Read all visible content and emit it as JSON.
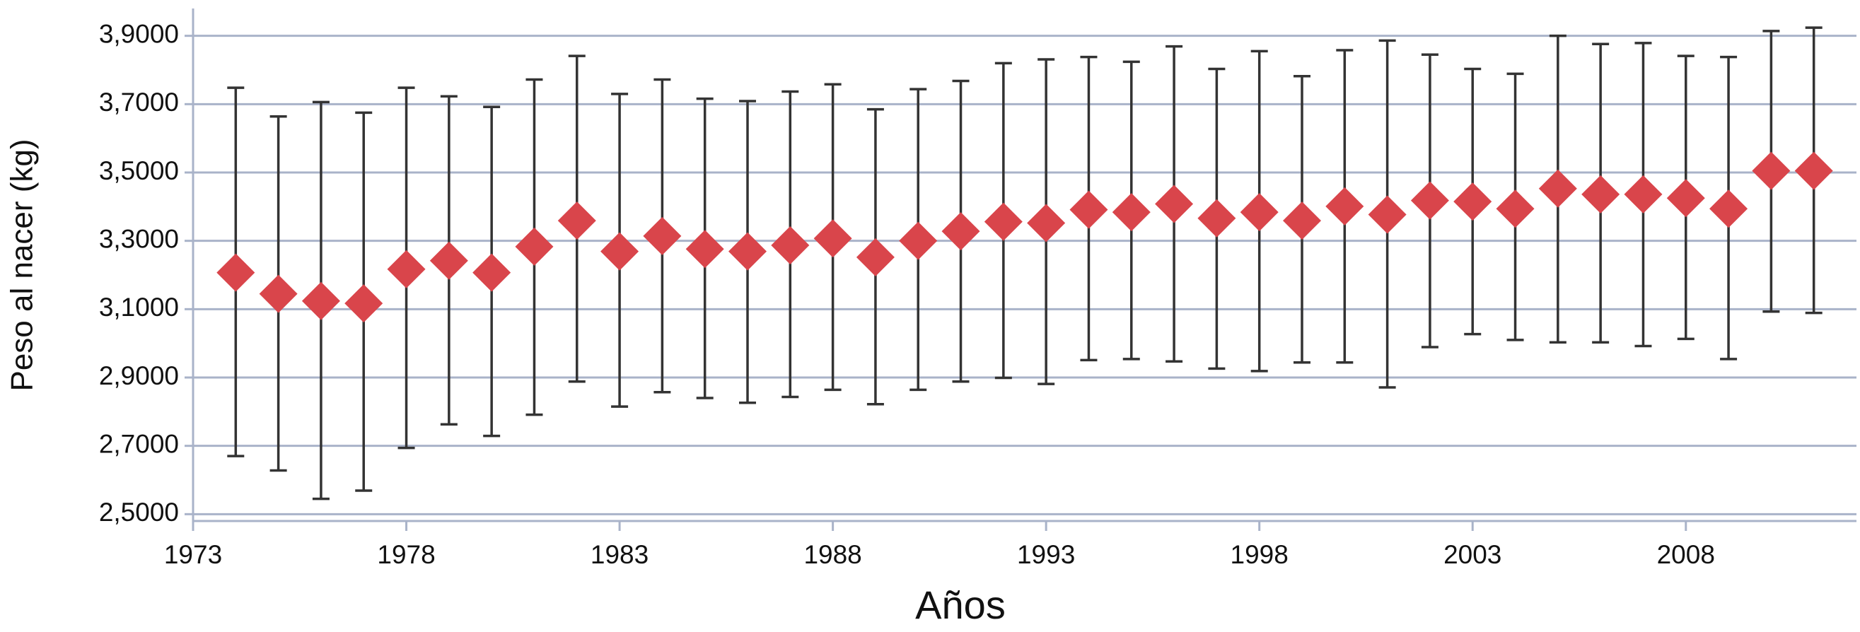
{
  "chart_data": {
    "type": "errorbar",
    "x_label": "Años",
    "y_label": "Peso al nacer (kg)",
    "x": [
      1974,
      1975,
      1976,
      1977,
      1978,
      1979,
      1980,
      1981,
      1982,
      1983,
      1984,
      1985,
      1986,
      1987,
      1988,
      1989,
      1990,
      1991,
      1992,
      1993,
      1994,
      1995,
      1996,
      1997,
      1998,
      1999,
      2000,
      2001,
      2002,
      2003,
      2004,
      2005,
      2006,
      2007,
      2008,
      2009,
      2010,
      2011
    ],
    "values": [
      3.207,
      3.145,
      3.124,
      3.117,
      3.217,
      3.242,
      3.207,
      3.283,
      3.359,
      3.269,
      3.314,
      3.276,
      3.269,
      3.287,
      3.307,
      3.252,
      3.3,
      3.328,
      3.356,
      3.352,
      3.391,
      3.384,
      3.408,
      3.366,
      3.384,
      3.359,
      3.401,
      3.377,
      3.418,
      3.415,
      3.394,
      3.453,
      3.436,
      3.436,
      3.425,
      3.394,
      3.505,
      3.505
    ],
    "high": [
      3.748,
      3.664,
      3.706,
      3.675,
      3.748,
      3.723,
      3.692,
      3.772,
      3.841,
      3.73,
      3.772,
      3.716,
      3.709,
      3.737,
      3.758,
      3.685,
      3.744,
      3.768,
      3.82,
      3.831,
      3.838,
      3.824,
      3.869,
      3.803,
      3.855,
      3.782,
      3.858,
      3.886,
      3.845,
      3.803,
      3.789,
      3.9,
      3.876,
      3.879,
      3.841,
      3.838,
      3.914,
      3.924
    ],
    "low": [
      2.67,
      2.628,
      2.545,
      2.569,
      2.694,
      2.763,
      2.729,
      2.791,
      2.888,
      2.815,
      2.857,
      2.84,
      2.826,
      2.843,
      2.864,
      2.822,
      2.864,
      2.888,
      2.899,
      2.881,
      2.951,
      2.954,
      2.947,
      2.926,
      2.919,
      2.944,
      2.944,
      2.871,
      2.989,
      3.027,
      3.01,
      3.003,
      3.003,
      2.992,
      3.013,
      2.954,
      3.093,
      3.089
    ],
    "color": "#d9454b",
    "bar_color": "#333333",
    "grid": true,
    "xlim": [
      1973,
      2012
    ],
    "xticks": [
      1973,
      1978,
      1983,
      1988,
      1993,
      1998,
      2003,
      2008
    ],
    "ylim": [
      2.48,
      3.98
    ],
    "yticks": [
      {
        "value": 2.5,
        "label": "2,5000"
      },
      {
        "value": 2.7,
        "label": "2,7000"
      },
      {
        "value": 2.9,
        "label": "2,9000"
      },
      {
        "value": 3.1,
        "label": "3,1000"
      },
      {
        "value": 3.3,
        "label": "3,3000"
      },
      {
        "value": 3.5,
        "label": "3,5000"
      },
      {
        "value": 3.7,
        "label": "3,7000"
      },
      {
        "value": 3.9,
        "label": "3,9000"
      }
    ]
  }
}
